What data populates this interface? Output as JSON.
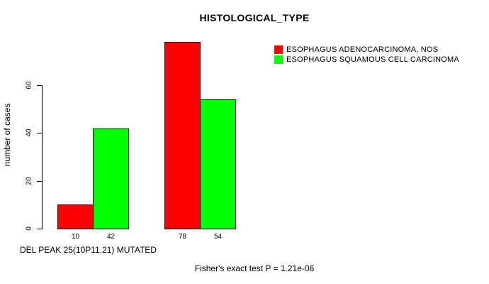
{
  "chart_data": {
    "type": "bar",
    "title": "HISTOLOGICAL_TYPE",
    "xlabel": "DEL PEAK 25(10P11.21) MUTATED",
    "ylabel": "number of cases",
    "ylim": [
      0,
      60
    ],
    "yticks": [
      0,
      20,
      40,
      60
    ],
    "grid": false,
    "legend_position": "top-right",
    "series": [
      {
        "name": "ESOPHAGUS ADENOCARCINOMA, NOS",
        "color": "#FF0000",
        "values": [
          10,
          78
        ]
      },
      {
        "name": "ESOPHAGUS SQUAMOUS CELL CARCINOMA",
        "color": "#00FF00",
        "values": [
          42,
          54
        ]
      }
    ],
    "footnote": "Fisher's exact test P = 1.21e-06"
  },
  "colors": {
    "background": "#FFFFFF",
    "axis": "#000000",
    "bar_border": "#000000",
    "text": "#000000"
  }
}
